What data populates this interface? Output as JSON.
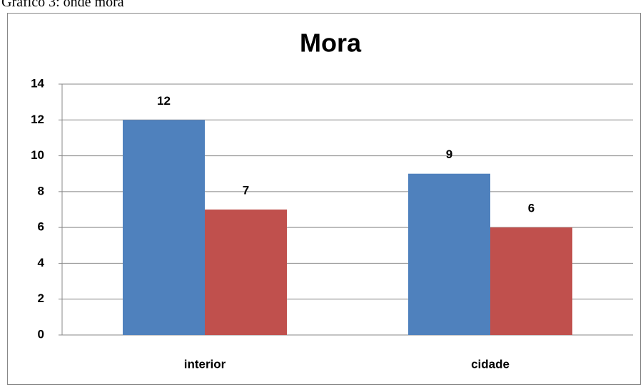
{
  "caption": "Gráfico 3: onde mora",
  "chart_data": {
    "type": "bar",
    "title": "Mora",
    "categories": [
      "interior",
      "cidade"
    ],
    "series": [
      {
        "color": "#4f81bd",
        "values": [
          12,
          9
        ]
      },
      {
        "color": "#c0504d",
        "values": [
          7,
          6
        ]
      }
    ],
    "ylim": [
      0,
      14
    ],
    "yticks": [
      0,
      2,
      4,
      6,
      8,
      10,
      12,
      14
    ],
    "grid": true,
    "data_labels": true
  }
}
